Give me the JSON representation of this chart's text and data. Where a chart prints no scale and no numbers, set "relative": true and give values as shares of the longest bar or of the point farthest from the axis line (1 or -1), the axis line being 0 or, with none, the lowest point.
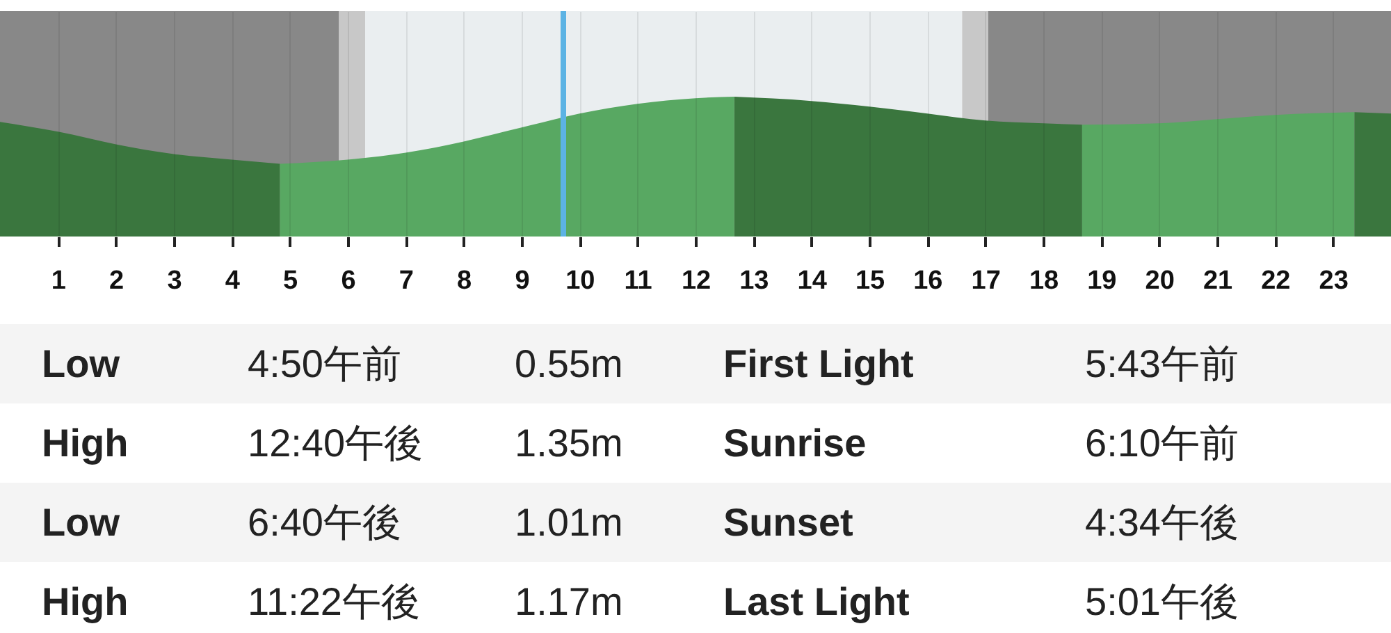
{
  "chart_data": {
    "type": "area",
    "relative": true,
    "xlim": [
      0,
      24
    ],
    "xticks": [
      1,
      2,
      3,
      4,
      5,
      6,
      7,
      8,
      9,
      10,
      11,
      12,
      13,
      14,
      15,
      16,
      17,
      18,
      19,
      20,
      21,
      22,
      23
    ],
    "grid": "x",
    "tick_labels": "x",
    "series": [
      {
        "color": "#3a763e",
        "x": [
          0,
          1,
          2,
          3,
          4,
          4.83
        ],
        "values": [
          0.82,
          0.75,
          0.66,
          0.59,
          0.55,
          0.52
        ]
      },
      {
        "color": "#58a862",
        "x": [
          4.83,
          6,
          7,
          8,
          9,
          10,
          11,
          12,
          12.67
        ],
        "values": [
          0.52,
          0.55,
          0.6,
          0.68,
          0.78,
          0.88,
          0.95,
          0.99,
          1
        ]
      },
      {
        "color": "#3a763e",
        "x": [
          12.67,
          14,
          15,
          16,
          17,
          18,
          18.67
        ],
        "values": [
          1,
          0.97,
          0.93,
          0.88,
          0.83,
          0.81,
          0.8
        ]
      },
      {
        "color": "#58a862",
        "x": [
          18.67,
          20,
          21,
          22,
          23.37
        ],
        "values": [
          0.8,
          0.81,
          0.84,
          0.87,
          0.89
        ]
      },
      {
        "color": "#3a763e",
        "x": [
          23.37,
          24
        ],
        "values": [
          0.89,
          0.88
        ]
      }
    ],
    "bands": [
      {
        "axis": "x",
        "from": 0,
        "to": 5.85,
        "color": "#888888"
      },
      {
        "axis": "x",
        "from": 5.85,
        "to": 6.3,
        "color": "#c8c8c8"
      },
      {
        "axis": "x",
        "from": 6.3,
        "to": 16.6,
        "color": "#eaeef0"
      },
      {
        "axis": "x",
        "from": 16.6,
        "to": 17.05,
        "color": "#c8c8c8"
      },
      {
        "axis": "x",
        "from": 17.05,
        "to": 24,
        "color": "#888888"
      }
    ],
    "ref_lines": [
      {
        "axis": "x",
        "value": 9.72,
        "color": "#5cb3e4"
      }
    ],
    "annotations": [
      "Low",
      "4:50午前",
      "0.55m",
      "First Light",
      "5:43午前",
      "High",
      "12:40午後",
      "1.35m",
      "Sunrise",
      "6:10午前",
      "Low",
      "6:40午後",
      "1.01m",
      "Sunset",
      "4:34午後",
      "High",
      "11:22午後",
      "1.17m",
      "Last Light",
      "5:01午後"
    ]
  }
}
